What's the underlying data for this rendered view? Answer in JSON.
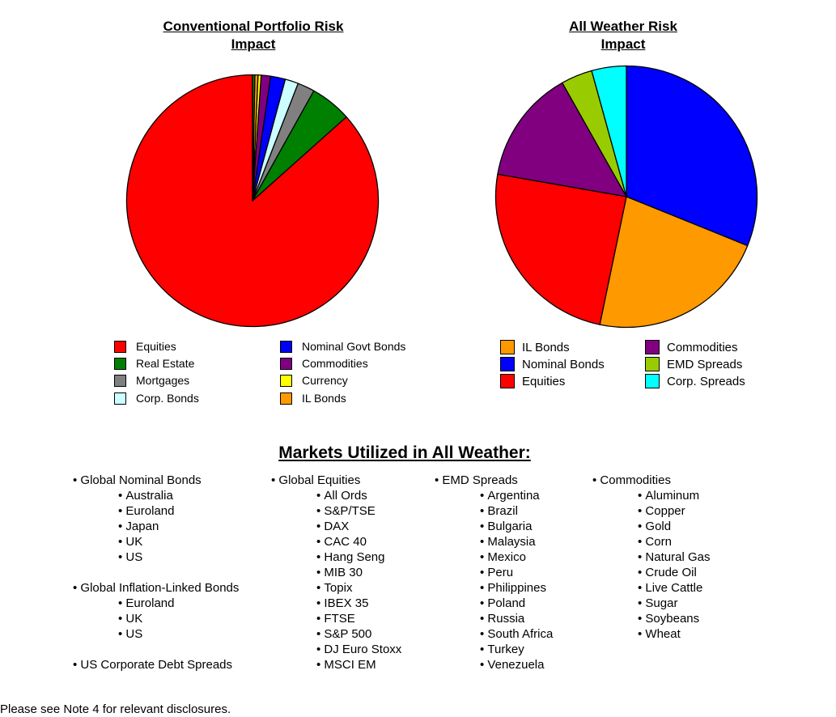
{
  "charts": [
    {
      "title_line1": "Conventional Portfolio Risk",
      "title_line2": "Impact"
    },
    {
      "title_line1": "All Weather Risk",
      "title_line2": "Impact"
    }
  ],
  "chart_data": [
    {
      "type": "pie",
      "title": "Conventional Portfolio Risk Impact",
      "start_angle_deg": 0,
      "direction": "counterclockwise",
      "slices": [
        {
          "label": "Equities",
          "value": 86.6,
          "color": "#ff0000"
        },
        {
          "label": "Real Estate",
          "value": 5.3,
          "color": "#008000"
        },
        {
          "label": "Mortgages",
          "value": 2.2,
          "color": "#808080"
        },
        {
          "label": "Corp. Bonds",
          "value": 1.7,
          "color": "#ccffff"
        },
        {
          "label": "Nominal Govt Bonds",
          "value": 1.9,
          "color": "#0000ff"
        },
        {
          "label": "Commodities",
          "value": 1.2,
          "color": "#800080"
        },
        {
          "label": "Currency",
          "value": 0.4,
          "color": "#ffff00"
        },
        {
          "label": "IL Bonds",
          "value": 0.4,
          "color": "#ff9900"
        },
        {
          "label": "",
          "value": 0.3,
          "color": "#008000"
        }
      ],
      "legend": [
        "Equities",
        "Real Estate",
        "Mortgages",
        "Corp. Bonds",
        "Nominal Govt Bonds",
        "Commodities",
        "Currency",
        "IL Bonds"
      ]
    },
    {
      "type": "pie",
      "title": "All Weather Risk Impact",
      "start_angle_deg": 0,
      "direction": "clockwise",
      "slices": [
        {
          "label": "Nominal Bonds",
          "value": 30.5,
          "color": "#0000ff"
        },
        {
          "label": "IL Bonds",
          "value": 21.7,
          "color": "#ff9900"
        },
        {
          "label": "Equities",
          "value": 24.0,
          "color": "#ff0000"
        },
        {
          "label": "Commodities",
          "value": 13.8,
          "color": "#800080"
        },
        {
          "label": "EMD Spreads",
          "value": 3.8,
          "color": "#99cc00"
        },
        {
          "label": "Corp. Spreads",
          "value": 4.2,
          "color": "#00ffff"
        }
      ],
      "legend": [
        "IL Bonds",
        "Nominal Bonds",
        "Equities",
        "Commodities",
        "EMD Spreads",
        "Corp. Spreads"
      ]
    }
  ],
  "legend1": [
    {
      "label": "Equities",
      "color": "#ff0000"
    },
    {
      "label": "Real Estate",
      "color": "#008000"
    },
    {
      "label": "Mortgages",
      "color": "#808080"
    },
    {
      "label": "Corp. Bonds",
      "color": "#ccffff"
    },
    {
      "label": "Nominal Govt Bonds",
      "color": "#0000ff"
    },
    {
      "label": "Commodities",
      "color": "#800080"
    },
    {
      "label": "Currency",
      "color": "#ffff00"
    },
    {
      "label": "IL Bonds",
      "color": "#ff9900"
    }
  ],
  "legend2": [
    {
      "label": "IL Bonds",
      "color": "#ff9900"
    },
    {
      "label": "Nominal Bonds",
      "color": "#0000ff"
    },
    {
      "label": "Equities",
      "color": "#ff0000"
    },
    {
      "label": "Commodities",
      "color": "#800080"
    },
    {
      "label": "EMD Spreads",
      "color": "#99cc00"
    },
    {
      "label": "Corp. Spreads",
      "color": "#00ffff"
    }
  ],
  "markets": {
    "title": "Markets Utilized in All Weather:",
    "columns": [
      {
        "groups": [
          {
            "head": "Global Nominal Bonds",
            "items": [
              "Australia",
              "Euroland",
              "Japan",
              "UK",
              "US"
            ]
          },
          {
            "head": "Global Inflation-Linked Bonds",
            "items": [
              "Euroland",
              "UK",
              "US"
            ]
          },
          {
            "head": "US Corporate Debt Spreads",
            "items": []
          }
        ]
      },
      {
        "groups": [
          {
            "head": "Global Equities",
            "items": [
              "All Ords",
              "S&P/TSE",
              "DAX",
              "CAC 40",
              "Hang Seng",
              "MIB 30",
              "Topix",
              "IBEX 35",
              "FTSE",
              "S&P 500",
              "DJ Euro Stoxx",
              "MSCI EM"
            ]
          }
        ]
      },
      {
        "groups": [
          {
            "head": "EMD Spreads",
            "items": [
              "Argentina",
              "Brazil",
              "Bulgaria",
              "Malaysia",
              "Mexico",
              "Peru",
              "Philippines",
              "Poland",
              "Russia",
              "South Africa",
              "Turkey",
              "Venezuela"
            ]
          }
        ]
      },
      {
        "groups": [
          {
            "head": "Commodities",
            "items": [
              "Aluminum",
              "Copper",
              "Gold",
              "Corn",
              "Natural Gas",
              "Crude Oil",
              "Live Cattle",
              "Sugar",
              "Soybeans",
              "Wheat"
            ]
          }
        ]
      }
    ]
  },
  "footer": "Please see Note 4 for relevant disclosures."
}
